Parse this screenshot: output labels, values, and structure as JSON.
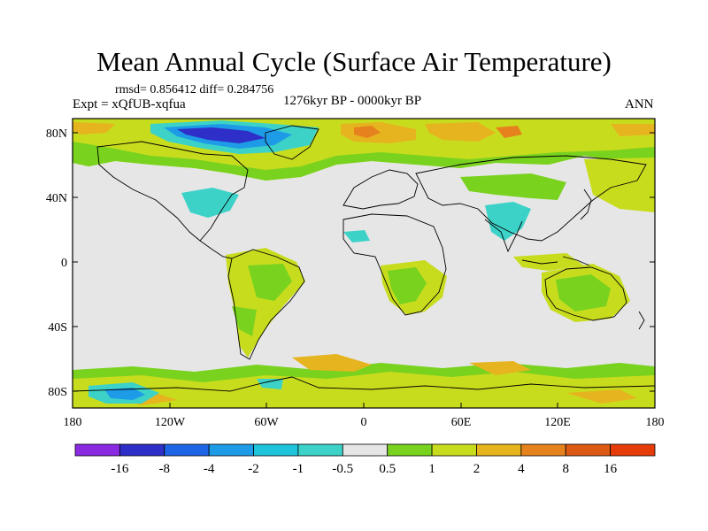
{
  "title": "Mean Annual Cycle (Surface Air Temperature)",
  "stats": "rmsd= 0.856412 diff= 0.284756",
  "experiment": "Expt = xQfUB-xqfua",
  "period": "1276kyr BP - 0000kyr BP",
  "season": "ANN",
  "lat_labels": [
    "80N",
    "40N",
    "0",
    "40S",
    "80S"
  ],
  "lon_labels": [
    "180",
    "120W",
    "60W",
    "0",
    "60E",
    "120E",
    "180"
  ],
  "colorbar": {
    "labels": [
      "-16",
      "-8",
      "-4",
      "-2",
      "-1",
      "-0.5",
      "0.5",
      "1",
      "2",
      "4",
      "8",
      "16"
    ],
    "colors": [
      "#8a2be2",
      "#2e2ec8",
      "#1e64e6",
      "#1e9be6",
      "#1ec3dc",
      "#3cd2c8",
      "#e6e6e6",
      "#78d21e",
      "#c8dc1e",
      "#e6b41e",
      "#e6821e",
      "#dc5a14",
      "#e63c0a"
    ]
  },
  "colors": {
    "ocean": "#e6e6e6",
    "coast": "#000000"
  }
}
